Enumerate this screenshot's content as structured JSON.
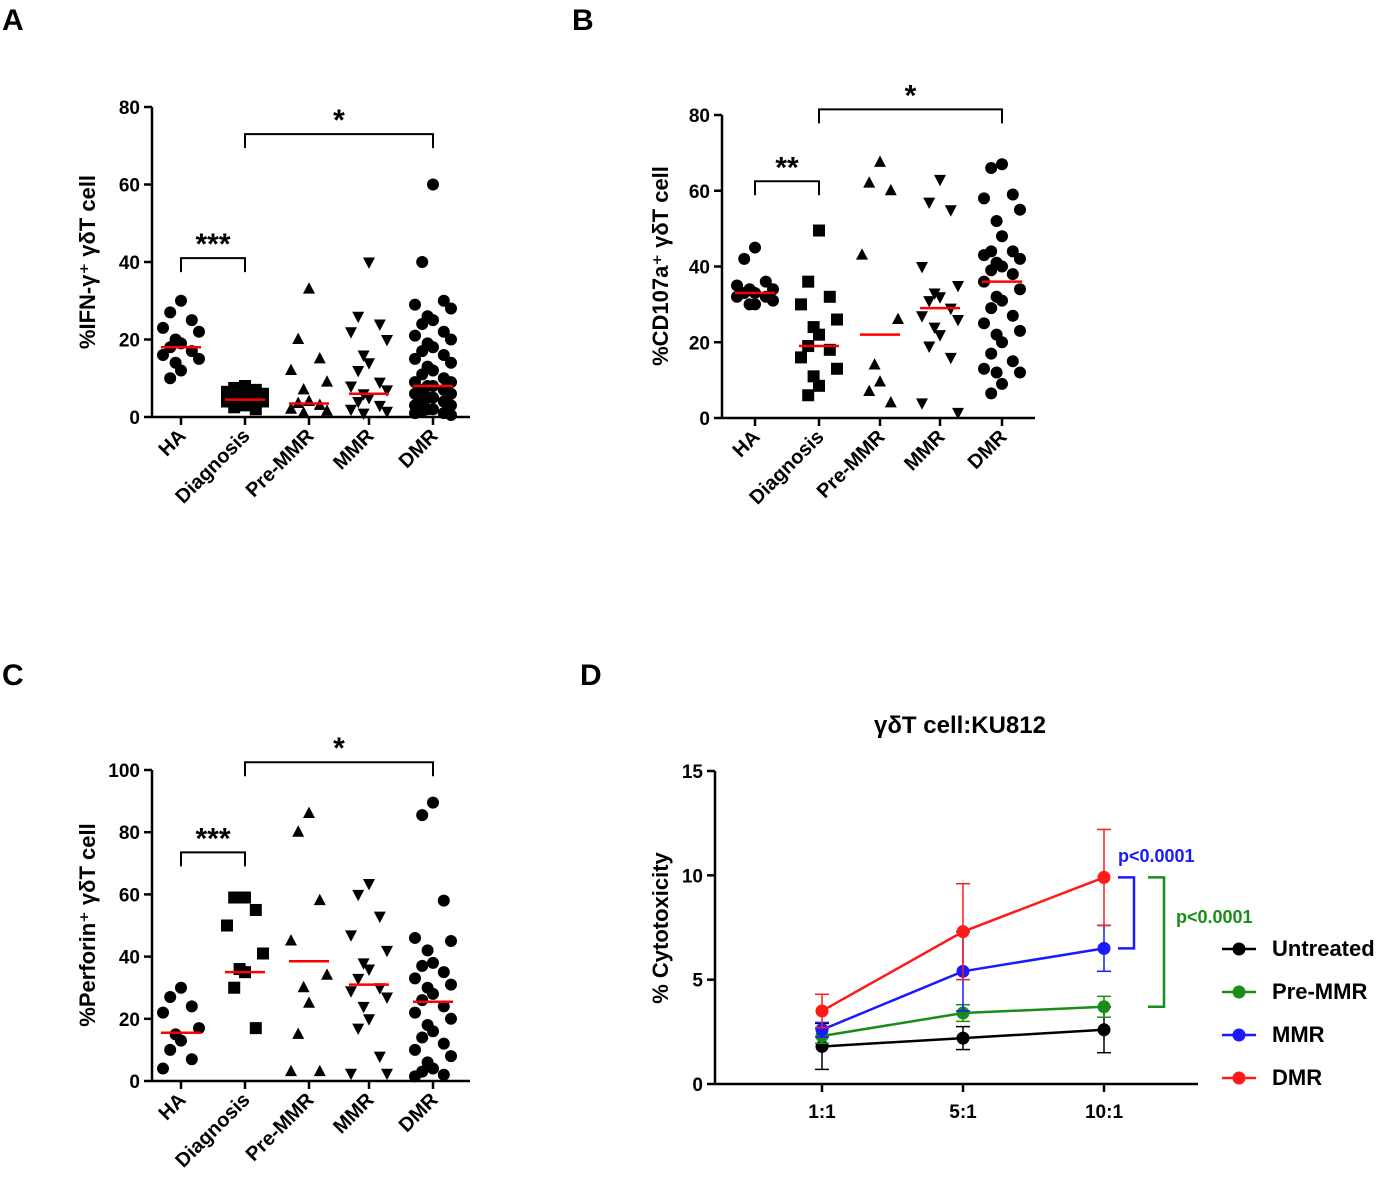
{
  "chart_data": [
    {
      "type": "scatter",
      "panel": "A",
      "ylabel": "%IFN-γ⁺ γδT cell",
      "ylim": [
        0,
        80
      ],
      "yticks": [
        0,
        20,
        40,
        60,
        80
      ],
      "categories": [
        "HA",
        "Diagnosis",
        "Pre-MMR",
        "MMR",
        "DMR"
      ],
      "markers": [
        "circle",
        "square",
        "triangle-up",
        "triangle-down",
        "circle"
      ],
      "medians": [
        18,
        4.5,
        3.5,
        6,
        8
      ],
      "points": [
        [
          30,
          27,
          25,
          23,
          22,
          20,
          19,
          18,
          17,
          16,
          15,
          14,
          12,
          10
        ],
        [
          8,
          7.5,
          7,
          6.5,
          6,
          6,
          5.5,
          5,
          4.5,
          4,
          4,
          3.5,
          3,
          2.5,
          2
        ],
        [
          33,
          20,
          15,
          12,
          9,
          7,
          4,
          3.5,
          3,
          2,
          1.5,
          1
        ],
        [
          40,
          26,
          24,
          22,
          20,
          16,
          14,
          12,
          9,
          8,
          7,
          6,
          5,
          4,
          3,
          2,
          1.5,
          1
        ],
        [
          60,
          40,
          30,
          29,
          28,
          26,
          25,
          24,
          22,
          21,
          20,
          19,
          18,
          17,
          16,
          15,
          14,
          13,
          12,
          11,
          10,
          9,
          9,
          8,
          8,
          7,
          7,
          6,
          6,
          5,
          5,
          4,
          4,
          3,
          3,
          2,
          2,
          1.5,
          1,
          1,
          0.5
        ]
      ],
      "brackets": [
        {
          "from": "HA",
          "to": "Diagnosis",
          "y": 41,
          "label": "***"
        },
        {
          "from": "Diagnosis",
          "to": "DMR",
          "y": 73,
          "label": "*"
        }
      ]
    },
    {
      "type": "scatter",
      "panel": "B",
      "ylabel": "%CD107a⁺ γδT cell",
      "ylim": [
        0,
        80
      ],
      "yticks": [
        0,
        20,
        40,
        60,
        80
      ],
      "categories": [
        "HA",
        "Diagnosis",
        "Pre-MMR",
        "MMR",
        "DMR"
      ],
      "markers": [
        "circle",
        "square",
        "triangle-up",
        "triangle-down",
        "circle"
      ],
      "medians": [
        33,
        19,
        22,
        29,
        36
      ],
      "points": [
        [
          45,
          42,
          36,
          35,
          34,
          34,
          33,
          33,
          32,
          32,
          31,
          30,
          30
        ],
        [
          49.5,
          36,
          32,
          30,
          26,
          24,
          22,
          19,
          18,
          16,
          13,
          11,
          8.5,
          6
        ],
        [
          67.5,
          62,
          60,
          43,
          26,
          14,
          9.5,
          7,
          4
        ],
        [
          63,
          57,
          55,
          40,
          35,
          33,
          32,
          31,
          29,
          27,
          26,
          24,
          22,
          19,
          16,
          4,
          1.5
        ],
        [
          67,
          66,
          59,
          58,
          55,
          52,
          48,
          44,
          44,
          43,
          42,
          41,
          40,
          39,
          38,
          36,
          34,
          32,
          31,
          29,
          27,
          25,
          23,
          22,
          20,
          17,
          15,
          13,
          12,
          12,
          9,
          6.5
        ]
      ],
      "brackets": [
        {
          "from": "HA",
          "to": "Diagnosis",
          "y": 62.5,
          "label": "**"
        },
        {
          "from": "Diagnosis",
          "to": "DMR",
          "y": 81.5,
          "label": "*"
        }
      ]
    },
    {
      "type": "scatter",
      "panel": "C",
      "ylabel": "%Perforin⁺ γδT cell",
      "ylim": [
        0,
        100
      ],
      "yticks": [
        0,
        20,
        40,
        60,
        80,
        100
      ],
      "categories": [
        "HA",
        "Diagnosis",
        "Pre-MMR",
        "MMR",
        "DMR"
      ],
      "markers": [
        "circle",
        "square",
        "triangle-up",
        "triangle-down",
        "circle"
      ],
      "medians": [
        15.5,
        35,
        38.5,
        31,
        25.5
      ],
      "points": [
        [
          30,
          27,
          24,
          22,
          17,
          15,
          13,
          10,
          7,
          4
        ],
        [
          59,
          59,
          55,
          50,
          41,
          36,
          35,
          30,
          17
        ],
        [
          86,
          80,
          58,
          45,
          34,
          30,
          25,
          15,
          3,
          3
        ],
        [
          63.5,
          60,
          53,
          47,
          42,
          38,
          36,
          33,
          30,
          29,
          27,
          24,
          20,
          17,
          8,
          2.5,
          2.5
        ],
        [
          89.5,
          85.5,
          58,
          46,
          45,
          42,
          38,
          37,
          35,
          33,
          31,
          30,
          28,
          26,
          24,
          22,
          20,
          18,
          16,
          14,
          12,
          10,
          8,
          6,
          4,
          3,
          2,
          1.5
        ]
      ],
      "brackets": [
        {
          "from": "HA",
          "to": "Diagnosis",
          "y": 73.5,
          "label": "***"
        },
        {
          "from": "Diagnosis",
          "to": "DMR",
          "y": 102.5,
          "label": "*"
        }
      ]
    },
    {
      "type": "line",
      "panel": "D",
      "title": "γδT cell:KU812",
      "ylabel": "% Cytotoxicity",
      "xlabel": "",
      "categories": [
        "1:1",
        "5:1",
        "10:1"
      ],
      "ylim": [
        0,
        15
      ],
      "yticks": [
        0,
        5,
        10,
        15
      ],
      "series": [
        {
          "name": "Untreated",
          "color": "#000000",
          "values": [
            1.8,
            2.2,
            2.6
          ],
          "errors": [
            1.1,
            0.55,
            1.1
          ]
        },
        {
          "name": "Pre-MMR",
          "color": "#1a8c1a",
          "values": [
            2.3,
            3.4,
            3.7
          ],
          "errors": [
            0.35,
            0.4,
            0.5
          ]
        },
        {
          "name": "MMR",
          "color": "#1a1aff",
          "values": [
            2.6,
            5.4,
            6.5
          ],
          "errors": [
            0.35,
            1.9,
            1.1
          ]
        },
        {
          "name": "DMR",
          "color": "#ff1a1a",
          "values": [
            3.5,
            7.3,
            9.9
          ],
          "errors": [
            0.8,
            2.3,
            2.3
          ]
        }
      ],
      "annotations": [
        {
          "text": "p<0.0001",
          "color": "#1a1aff",
          "between": [
            "DMR",
            "MMR"
          ]
        },
        {
          "text": "p<0.0001",
          "color": "#1a8c1a",
          "between": [
            "DMR",
            "Pre-MMR"
          ]
        }
      ]
    }
  ],
  "colors": {
    "median": "#ff0000"
  }
}
